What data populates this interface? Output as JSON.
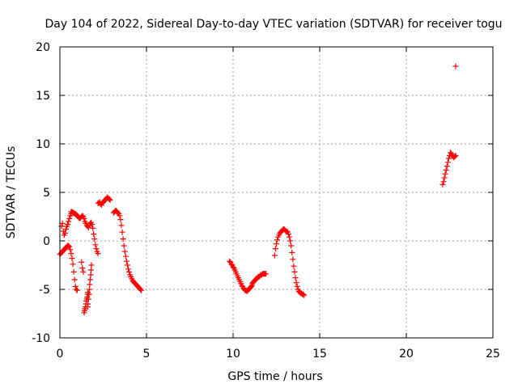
{
  "chart_data": {
    "type": "scatter",
    "title": "Day 104 of 2022, Sidereal Day-to-day VTEC variation (SDTVAR) for receiver togu",
    "xlabel": "GPS time / hours",
    "ylabel": "SDTVAR / TECUs",
    "xlim": [
      0,
      25
    ],
    "ylim": [
      -10,
      20
    ],
    "xticks": [
      0,
      5,
      10,
      15,
      20,
      25
    ],
    "yticks": [
      -10,
      -5,
      0,
      5,
      10,
      15,
      20
    ],
    "grid": true,
    "marker": "+",
    "series": [
      {
        "name": "SDTVAR",
        "color": "#ff0000",
        "x": [
          0.0,
          0.05,
          0.1,
          0.15,
          0.2,
          0.25,
          0.3,
          0.35,
          0.4,
          0.45,
          0.5,
          0.55,
          0.6,
          0.65,
          0.7,
          0.75,
          0.8,
          0.85,
          0.9,
          0.95,
          1.0,
          0.1,
          0.15,
          0.2,
          0.25,
          0.3,
          0.35,
          0.4,
          0.45,
          0.5,
          0.55,
          0.6,
          0.65,
          0.7,
          0.65,
          0.7,
          0.75,
          0.8,
          0.85,
          0.9,
          0.95,
          1.0,
          1.05,
          1.1,
          1.15,
          1.2,
          1.25,
          1.3,
          1.35,
          1.4,
          1.45,
          1.5,
          1.55,
          1.6,
          1.65,
          1.7,
          1.75,
          1.8,
          1.85,
          1.9,
          1.95,
          2.0,
          2.05,
          2.1,
          2.15,
          2.2,
          1.25,
          1.3,
          1.35,
          1.4,
          1.42,
          1.45,
          1.48,
          1.5,
          1.52,
          1.55,
          1.58,
          1.6,
          1.62,
          1.65,
          1.6,
          1.62,
          1.65,
          1.68,
          1.7,
          1.72,
          1.75,
          1.78,
          1.8,
          1.82,
          2.2,
          2.25,
          2.3,
          2.35,
          2.4,
          2.45,
          2.5,
          2.55,
          2.6,
          2.65,
          2.7,
          2.75,
          2.8,
          2.85,
          2.9,
          3.1,
          3.15,
          3.2,
          3.25,
          3.3,
          3.35,
          3.4,
          3.45,
          3.5,
          3.55,
          3.6,
          3.65,
          3.7,
          3.75,
          3.8,
          3.85,
          3.9,
          3.95,
          4.0,
          4.05,
          4.1,
          4.15,
          4.2,
          4.25,
          4.3,
          4.35,
          4.4,
          4.45,
          4.5,
          4.55,
          4.6,
          4.65,
          4.7,
          9.8,
          9.85,
          9.9,
          9.95,
          10.0,
          10.05,
          10.1,
          10.15,
          10.2,
          10.25,
          10.3,
          10.35,
          10.4,
          10.45,
          10.5,
          10.55,
          10.6,
          10.65,
          10.7,
          10.75,
          10.8,
          10.85,
          10.9,
          10.95,
          11.0,
          11.05,
          11.1,
          11.1,
          11.15,
          11.2,
          11.25,
          11.3,
          11.35,
          11.4,
          11.45,
          11.5,
          11.55,
          11.6,
          11.65,
          11.7,
          11.75,
          11.8,
          11.85,
          11.9,
          12.4,
          12.45,
          12.5,
          12.55,
          12.6,
          12.65,
          12.7,
          12.75,
          12.8,
          12.85,
          12.9,
          12.95,
          13.0,
          13.05,
          13.1,
          13.15,
          13.2,
          13.25,
          13.3,
          13.35,
          13.4,
          13.45,
          13.5,
          13.55,
          13.6,
          13.65,
          13.7,
          13.75,
          13.8,
          13.85,
          13.9,
          13.95,
          14.0,
          14.05,
          14.1,
          22.1,
          22.15,
          22.2,
          22.25,
          22.3,
          22.35,
          22.4,
          22.45,
          22.5,
          22.55,
          22.6,
          22.65,
          22.7,
          22.75,
          22.8,
          22.85,
          22.85
        ],
        "y": [
          -1.4,
          -1.3,
          -1.2,
          -1.1,
          -1.0,
          -0.9,
          -0.8,
          -0.7,
          -0.6,
          -0.5,
          -0.5,
          -0.6,
          -0.9,
          -1.3,
          -1.8,
          -2.4,
          -3.2,
          -4.0,
          -4.7,
          -5.0,
          -5.1,
          1.5,
          1.8,
          1.0,
          0.6,
          0.8,
          1.2,
          1.5,
          1.7,
          2.0,
          2.3,
          2.6,
          2.8,
          3.0,
          3.0,
          3.0,
          2.9,
          2.9,
          2.8,
          2.8,
          2.7,
          2.6,
          2.5,
          2.4,
          2.3,
          2.4,
          2.5,
          2.6,
          2.5,
          2.3,
          2.0,
          1.8,
          1.6,
          1.5,
          1.4,
          1.6,
          1.8,
          1.9,
          1.7,
          1.3,
          0.7,
          0.2,
          -0.4,
          -0.8,
          -1.1,
          -1.3,
          -2.2,
          -2.8,
          -3.2,
          -7.4,
          -7.2,
          -7.0,
          -6.8,
          -6.5,
          -6.2,
          -6.0,
          -5.8,
          -5.5,
          -5.3,
          -5.5,
          -6.8,
          -6.5,
          -6.0,
          -5.5,
          -5.0,
          -4.5,
          -4.0,
          -3.5,
          -3.0,
          -2.5,
          3.9,
          3.9,
          4.0,
          3.8,
          3.7,
          3.9,
          4.0,
          4.1,
          4.2,
          4.3,
          4.4,
          4.5,
          4.4,
          4.3,
          4.2,
          2.9,
          3.0,
          3.1,
          3.1,
          3.0,
          2.9,
          2.8,
          2.6,
          2.2,
          1.6,
          0.9,
          0.2,
          -0.5,
          -1.1,
          -1.6,
          -2.1,
          -2.5,
          -2.9,
          -3.2,
          -3.5,
          -3.7,
          -3.9,
          -4.1,
          -4.2,
          -4.3,
          -4.4,
          -4.5,
          -4.6,
          -4.7,
          -4.8,
          -4.9,
          -5.0,
          -5.1,
          -2.1,
          -2.2,
          -2.4,
          -2.5,
          -2.7,
          -2.8,
          -3.0,
          -3.2,
          -3.4,
          -3.6,
          -3.8,
          -4.0,
          -4.2,
          -4.4,
          -4.6,
          -4.7,
          -4.9,
          -5.0,
          -5.1,
          -5.1,
          -5.2,
          -5.1,
          -5.0,
          -4.9,
          -4.8,
          -4.7,
          -4.6,
          -4.4,
          -4.3,
          -4.2,
          -4.1,
          -4.0,
          -3.9,
          -3.8,
          -3.7,
          -3.7,
          -3.6,
          -3.5,
          -3.5,
          -3.4,
          -3.4,
          -3.4,
          -3.4,
          -3.4,
          -1.5,
          -0.8,
          -0.3,
          0.1,
          0.4,
          0.6,
          0.8,
          0.9,
          1.0,
          1.1,
          1.2,
          1.2,
          1.1,
          1.0,
          1.0,
          0.9,
          0.7,
          0.4,
          0.0,
          -0.5,
          -1.2,
          -1.9,
          -2.6,
          -3.2,
          -3.8,
          -4.3,
          -4.7,
          -5.0,
          -5.2,
          -5.3,
          -5.4,
          -5.4,
          -5.5,
          -5.5,
          -5.6,
          5.8,
          6.1,
          6.5,
          6.9,
          7.3,
          7.7,
          8.1,
          8.5,
          8.8,
          9.1,
          9.0,
          8.8,
          8.7,
          8.6,
          8.7,
          8.8,
          18.0
        ]
      }
    ]
  }
}
